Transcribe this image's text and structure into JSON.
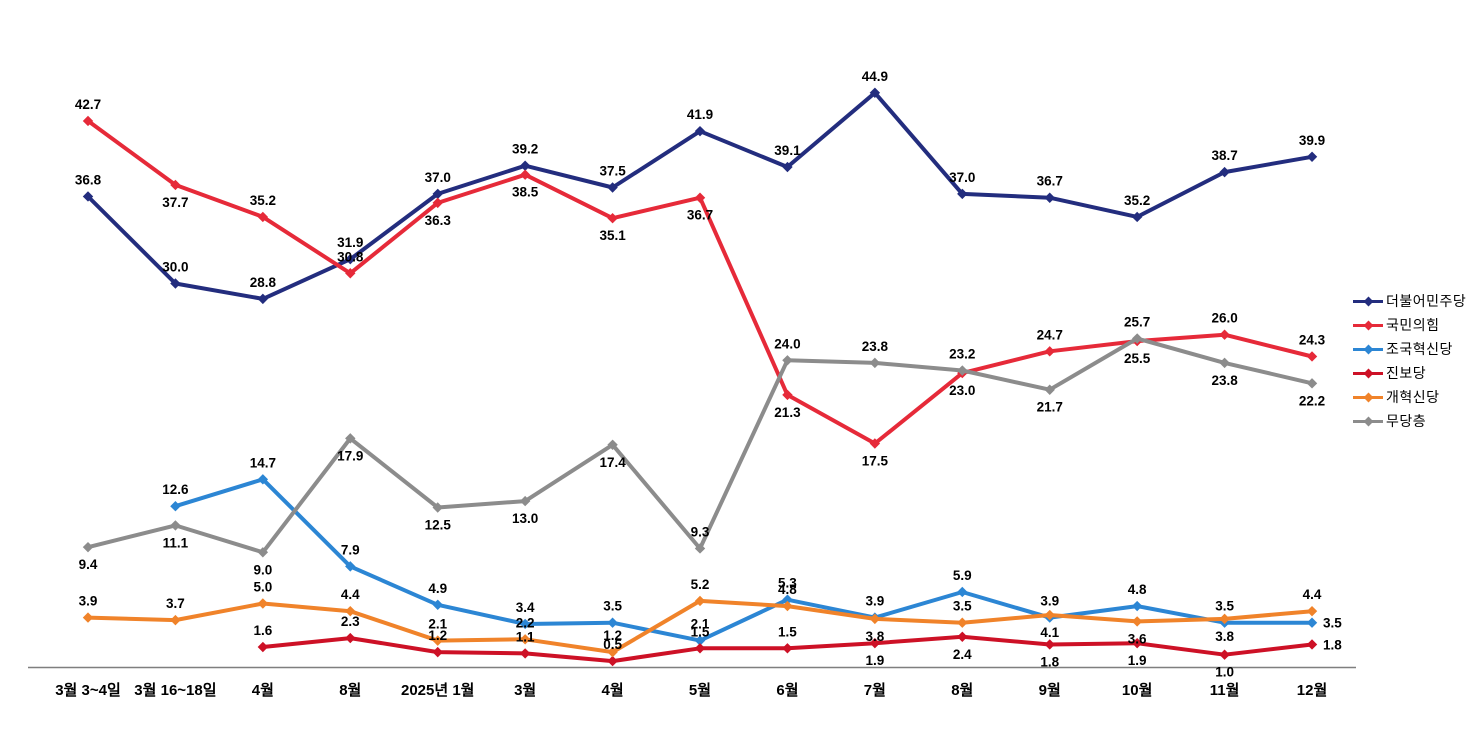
{
  "chart_data": {
    "type": "line",
    "title": "",
    "xlabel": "",
    "ylabel": "",
    "ylim": [
      0,
      50
    ],
    "grid": false,
    "legend_position": "right",
    "value_labels": "one_decimal",
    "categories": [
      "3월 3~4일",
      "3월 16~18일",
      "4월",
      "8월",
      "2025년 1월",
      "3월",
      "4월",
      "5월",
      "6월",
      "7월",
      "8월",
      "9월",
      "10월",
      "11월",
      "12월"
    ],
    "series": [
      {
        "name": "더불어민주당",
        "color": "#232D7E",
        "values": [
          36.8,
          30.0,
          28.8,
          31.9,
          37.0,
          39.2,
          37.5,
          41.9,
          39.1,
          44.9,
          37.0,
          36.7,
          35.2,
          38.7,
          39.9
        ],
        "label_pos": [
          "a",
          "a",
          "a",
          "a",
          "a",
          "a",
          "a",
          "a",
          "a",
          "a",
          "a",
          "a",
          "a",
          "a",
          "a"
        ]
      },
      {
        "name": "국민의힘",
        "color": "#E62A39",
        "values": [
          42.7,
          37.7,
          35.2,
          30.8,
          36.3,
          38.5,
          35.1,
          36.7,
          21.3,
          17.5,
          23.0,
          24.7,
          25.5,
          26.0,
          24.3
        ],
        "label_pos": [
          "a",
          "b",
          "a",
          "a",
          "b",
          "b",
          "b",
          "b",
          "b",
          "b",
          "b",
          "a",
          "b",
          "a",
          "a"
        ]
      },
      {
        "name": "조국혁신당",
        "color": "#2C86D4",
        "values": [
          null,
          12.6,
          14.7,
          7.9,
          4.9,
          3.4,
          3.5,
          2.1,
          5.3,
          3.9,
          5.9,
          3.9,
          4.8,
          3.5,
          3.5
        ],
        "label_pos": [
          null,
          "a",
          "a",
          "a",
          "a",
          "a",
          "a",
          "a",
          "a",
          "a",
          "a",
          "a",
          "a",
          "a",
          "r"
        ]
      },
      {
        "name": "진보당",
        "color": "#CD1126",
        "values": [
          null,
          null,
          1.6,
          2.3,
          1.2,
          1.1,
          0.5,
          1.5,
          1.5,
          1.9,
          2.4,
          1.8,
          1.9,
          1.0,
          1.8
        ],
        "label_pos": [
          null,
          null,
          "a",
          "a",
          "a",
          "a",
          "a",
          "a",
          "a",
          "b",
          "b",
          "b",
          "b",
          "b",
          "r"
        ]
      },
      {
        "name": "개혁신당",
        "color": "#F0832A",
        "values": [
          3.9,
          3.7,
          5.0,
          4.4,
          2.1,
          2.2,
          1.2,
          5.2,
          4.8,
          3.8,
          3.5,
          4.1,
          3.6,
          3.8,
          4.4
        ],
        "label_pos": [
          "a",
          "a",
          "a",
          "a",
          "a",
          "a",
          "a",
          "a",
          "a",
          "b",
          "a",
          "b",
          "b",
          "b",
          "a"
        ]
      },
      {
        "name": "무당층",
        "color": "#8C8C8C",
        "values": [
          9.4,
          11.1,
          9.0,
          17.9,
          12.5,
          13.0,
          17.4,
          9.3,
          24.0,
          23.8,
          23.2,
          21.7,
          25.7,
          23.8,
          22.2
        ],
        "label_pos": [
          "b",
          "b",
          "b",
          "b",
          "b",
          "b",
          "b",
          "a",
          "a",
          "a",
          "a",
          "b",
          "a",
          "b",
          "b"
        ]
      }
    ]
  }
}
